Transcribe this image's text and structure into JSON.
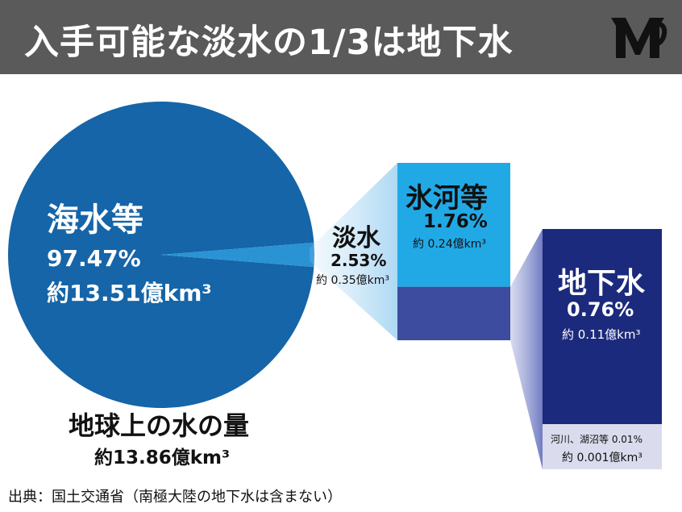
{
  "header": {
    "title": "入手可能な淡水の1/3は地下水",
    "logo_icon": "logo-mark-icon",
    "background": "#5a5a5a"
  },
  "chart_data": {
    "type": "pie",
    "total": {
      "label": "地球上の水の量",
      "volume": "約13.86億km³",
      "volume_value": 13.86,
      "unit": "億km³"
    },
    "slices": [
      {
        "name": "海水等",
        "percent": 97.47,
        "percent_label": "97.47%",
        "volume_label": "約13.51億km³",
        "volume_value": 13.51,
        "color": "#1565a8"
      },
      {
        "name": "淡水",
        "percent": 2.53,
        "percent_label": "2.53%",
        "volume_label": "約 0.35億km³",
        "volume_value": 0.35,
        "color": "#2a93d4"
      }
    ],
    "freshwater_breakdown": [
      {
        "name": "氷河等",
        "percent": 1.76,
        "percent_label": "1.76%",
        "volume_label": "約 0.24億km³",
        "volume_value": 0.24,
        "color": "#21a9e6"
      },
      {
        "name": "地下水",
        "percent": 0.76,
        "percent_label": "0.76%",
        "volume_label": "約 0.11億km³",
        "volume_value": 0.11,
        "color": "#3d4c9e"
      }
    ],
    "groundwater_breakdown": [
      {
        "name": "地下水",
        "percent": 0.76,
        "percent_label": "0.76%",
        "volume_label": "約 0.11億km³",
        "volume_value": 0.11,
        "color": "#1b2a7c"
      },
      {
        "name": "河川、湖沼等",
        "percent": 0.01,
        "percent_label": "0.01%",
        "volume_label": "約 0.001億km³",
        "volume_value": 0.001,
        "color": "#dadbed"
      }
    ]
  },
  "source": "出典：国土交通省（南極大陸の地下水は含まない）"
}
